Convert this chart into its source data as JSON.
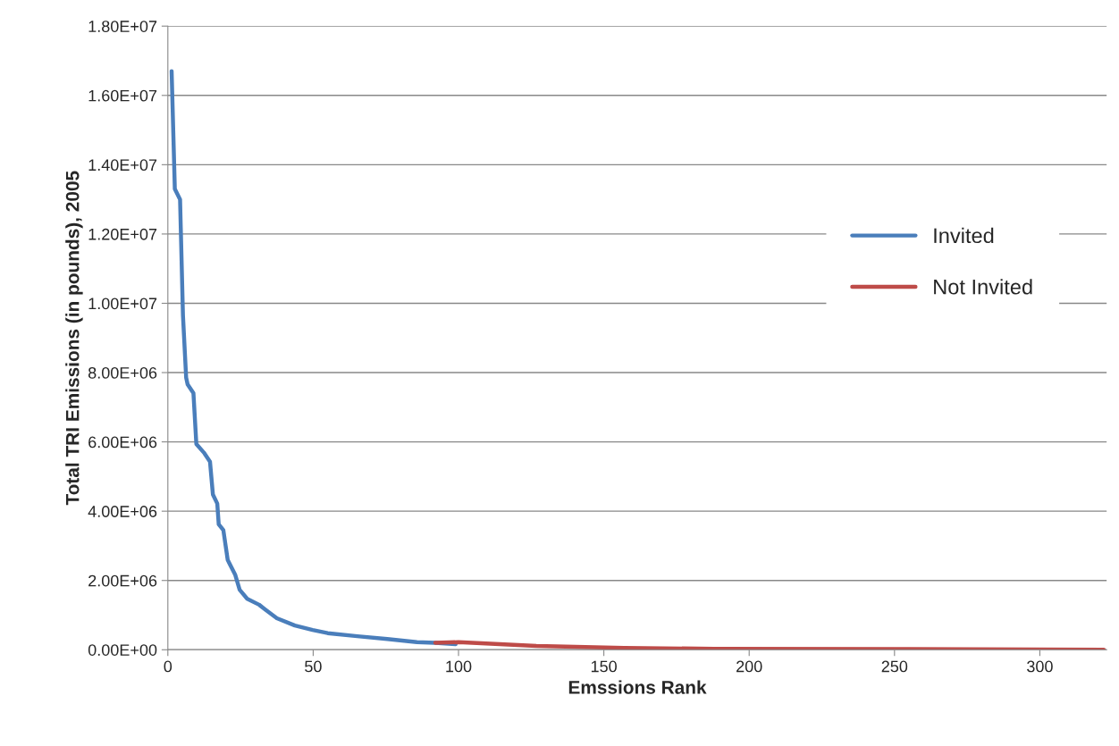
{
  "chart_data": {
    "type": "line",
    "xlabel": "Emssions Rank",
    "ylabel": "Total TRI Emissions (in pounds), 2005",
    "series": [
      {
        "name": "Invited",
        "color": "#4a7ebb",
        "x": [
          1.3,
          2.4,
          4.2,
          5.2,
          6.3,
          6.8,
          8.8,
          9.8,
          12.4,
          14.5,
          15.5,
          17,
          17.5,
          19.1,
          20.6,
          23.2,
          24.7,
          27.3,
          31.4,
          33.4,
          37.5,
          43.7,
          49.8,
          55,
          65.2,
          75.5,
          85.7,
          91.9,
          99
        ],
        "values": [
          16700000,
          13300000,
          13000000,
          9650000,
          7850000,
          7660000,
          7410000,
          5940000,
          5690000,
          5430000,
          4480000,
          4220000,
          3620000,
          3450000,
          2590000,
          2160000,
          1730000,
          1470000,
          1300000,
          1170000,
          910000,
          700000,
          570000,
          480000,
          390000,
          310000,
          220000,
          200000,
          160000
        ]
      },
      {
        "name": "Not Invited",
        "color": "#be4b48",
        "x": [
          92,
          100,
          126.8,
          157,
          188,
          250,
          300,
          322
        ],
        "values": [
          200000,
          220000,
          110000,
          50000,
          30000,
          20000,
          10000,
          0
        ]
      }
    ],
    "xlim": [
      0,
      323
    ],
    "xticks": [
      0,
      50,
      100,
      150,
      200,
      250,
      300
    ],
    "ylim": [
      0,
      18000000
    ],
    "yticks": [
      {
        "value": 0,
        "label": "0.00E+00"
      },
      {
        "value": 2000000,
        "label": "2.00E+06"
      },
      {
        "value": 4000000,
        "label": "4.00E+06"
      },
      {
        "value": 6000000,
        "label": "6.00E+06"
      },
      {
        "value": 8000000,
        "label": "8.00E+06"
      },
      {
        "value": 10000000,
        "label": "1.00E+07"
      },
      {
        "value": 12000000,
        "label": "1.20E+07"
      },
      {
        "value": 14000000,
        "label": "1.40E+07"
      },
      {
        "value": 16000000,
        "label": "1.60E+07"
      },
      {
        "value": 18000000,
        "label": "1.80E+07"
      }
    ],
    "grid": "y",
    "legend": "right",
    "marker": "none",
    "line_style": "solid"
  }
}
